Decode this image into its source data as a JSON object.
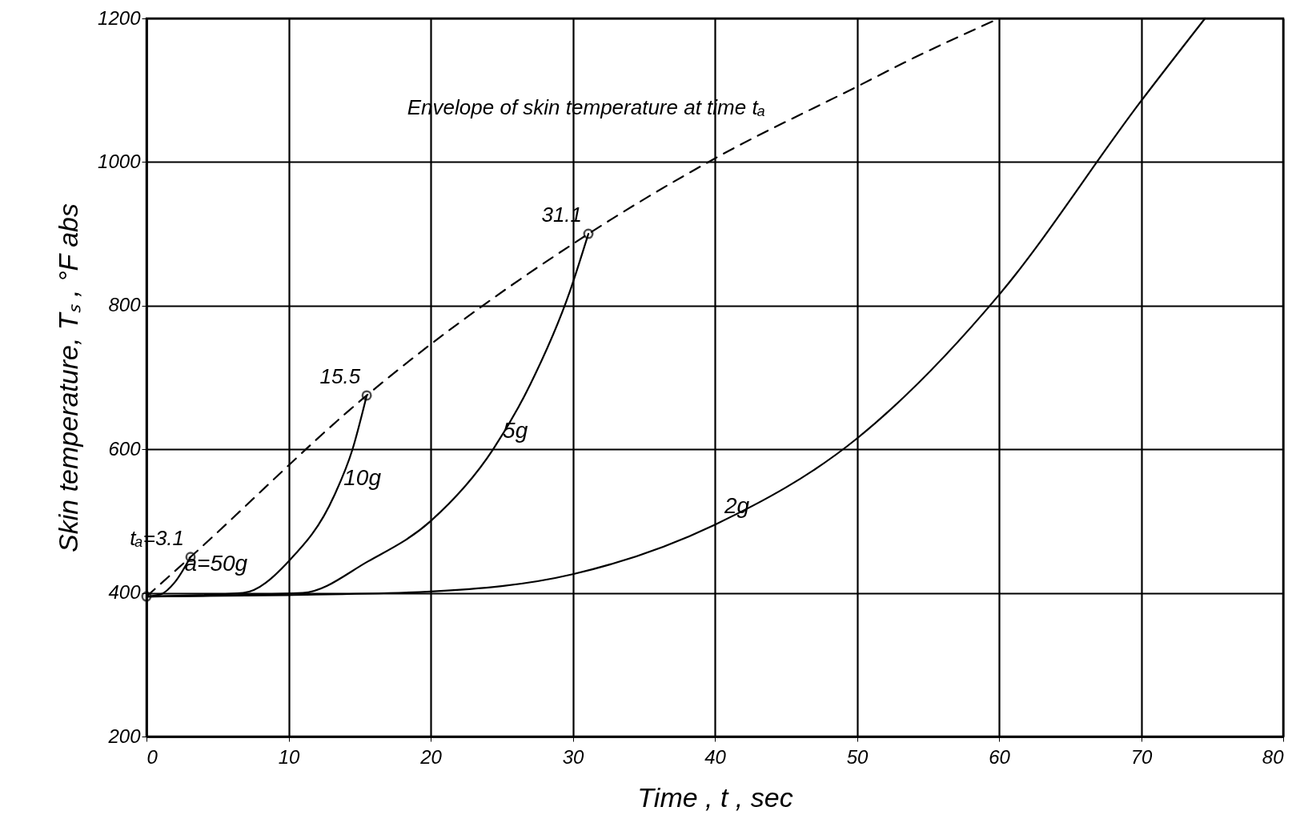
{
  "chart_data": {
    "type": "line",
    "xlabel": "Time , t , sec",
    "ylabel": "Skin temperature, Tₛ , °F abs",
    "xlim": [
      0,
      80
    ],
    "xticks": [
      0,
      10,
      20,
      30,
      40,
      50,
      60,
      70,
      80
    ],
    "ylim": [
      200,
      1200
    ],
    "yticks": [
      200,
      400,
      600,
      800,
      1000,
      1200
    ],
    "grid": true,
    "series": [
      {
        "name": "a=50g",
        "color": "#000000",
        "x": [
          0,
          1,
          2,
          3.1
        ],
        "values": [
          395,
          398,
          415,
          450
        ]
      },
      {
        "name": "10g",
        "color": "#000000",
        "x": [
          0,
          6.8,
          10,
          13.2,
          14.5,
          15.5
        ],
        "values": [
          395,
          400,
          444,
          535,
          600,
          675
        ]
      },
      {
        "name": "5g",
        "color": "#000000",
        "x": [
          0,
          11,
          15.6,
          20,
          24.4,
          27,
          29.8,
          31.1
        ],
        "values": [
          395,
          400,
          444,
          500,
          600,
          690,
          820,
          900
        ]
      },
      {
        "name": "2g",
        "color": "#000000",
        "x": [
          0,
          10,
          20,
          30,
          40,
          50,
          60,
          70,
          74.5
        ],
        "values": [
          395,
          397,
          402,
          426,
          495,
          615,
          815,
          1085,
          1200
        ]
      },
      {
        "color": "#000000",
        "line_style": "dashed",
        "x": [
          0,
          3.1,
          15.5,
          31.1,
          40,
          50,
          54,
          60
        ],
        "values": [
          395,
          450,
          675,
          900,
          1005,
          1105,
          1145,
          1200
        ]
      },
      {
        "type": "scatter",
        "color": "#000000",
        "marker": "circle",
        "x": [
          0,
          3.1,
          15.5,
          31.1
        ],
        "values": [
          395,
          450,
          675,
          900
        ]
      }
    ],
    "annotations": [
      {
        "text": "tₐ=3.1",
        "x": 3.1,
        "y": 450
      },
      {
        "text": "15.5",
        "x": 15.5,
        "y": 675
      },
      {
        "text": "31.1",
        "x": 31.1,
        "y": 900
      },
      {
        "text": "Envelope of skin temperature at time tₐ",
        "x": 44,
        "y": 1050
      }
    ]
  }
}
